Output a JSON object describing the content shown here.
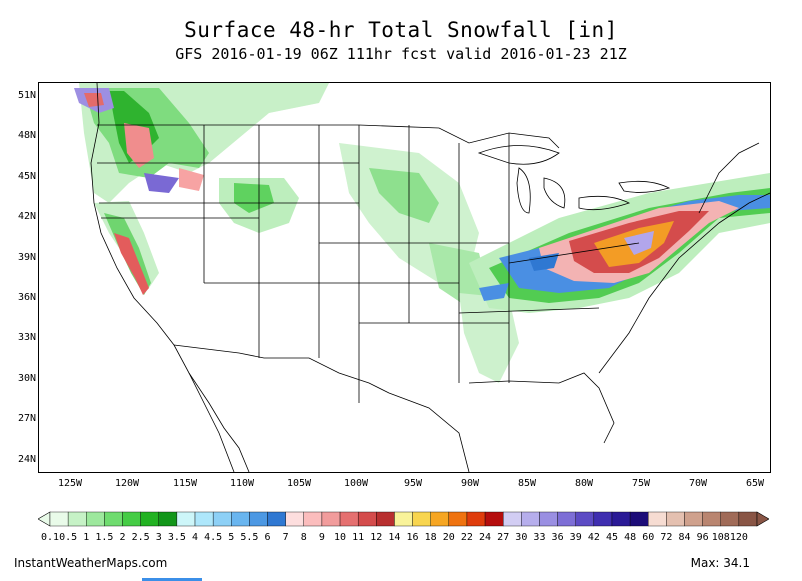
{
  "title": "Surface 48-hr Total Snowfall [in]",
  "subtitle": "GFS 2016-01-19 06Z 111hr fcst valid 2016-01-23 21Z",
  "latitude_labels": [
    "51N",
    "48N",
    "45N",
    "42N",
    "39N",
    "36N",
    "33N",
    "30N",
    "27N",
    "24N"
  ],
  "longitude_labels": [
    "125W",
    "120W",
    "115W",
    "110W",
    "105W",
    "100W",
    "95W",
    "90W",
    "85W",
    "80W",
    "75W",
    "70W",
    "65W"
  ],
  "colorbar": {
    "labels": [
      "0.1",
      "0.5",
      "1",
      "1.5",
      "2",
      "2.5",
      "3",
      "3.5",
      "4",
      "4.5",
      "5",
      "5.5",
      "6",
      "7",
      "8",
      "9",
      "10",
      "11",
      "12",
      "14",
      "16",
      "18",
      "20",
      "22",
      "24",
      "27",
      "30",
      "33",
      "36",
      "39",
      "42",
      "45",
      "48",
      "60",
      "72",
      "84",
      "96",
      "108",
      "120"
    ],
    "colors": [
      "#e9fbe9",
      "#c6f2c6",
      "#9de89d",
      "#6fdc6f",
      "#45cc45",
      "#22b222",
      "#12961a",
      "#cdf6f9",
      "#aee7fb",
      "#8dd0f6",
      "#69b5ef",
      "#4c98e3",
      "#2f78d2",
      "#fddede",
      "#fbbdbd",
      "#f19c9c",
      "#e57070",
      "#d44c4c",
      "#b82f2f",
      "#f9f39a",
      "#f8d54f",
      "#f6a623",
      "#ef7310",
      "#df3c0c",
      "#b50d0d",
      "#d2cdf3",
      "#b6aeec",
      "#9a8fe2",
      "#7d6ed6",
      "#5c4bc4",
      "#3f2eb0",
      "#2a1a96",
      "#1c0c78",
      "#f6dcd2",
      "#e4c0b0",
      "#cfa18d",
      "#b98570",
      "#a06b58",
      "#895545"
    ]
  },
  "footer": {
    "source": "InstantWeatherMaps.com",
    "max_label": "Max:  34.1"
  },
  "map_colors": {
    "light_green": "#b9ecb9",
    "green": "#5fd25f",
    "dark_green": "#1fa51f",
    "blue": "#4a8fe3",
    "pink": "#f3b3b3",
    "red": "#d44c4c",
    "orange": "#f39c25",
    "purple": "#8a7ad8",
    "boundary": "#000000"
  }
}
